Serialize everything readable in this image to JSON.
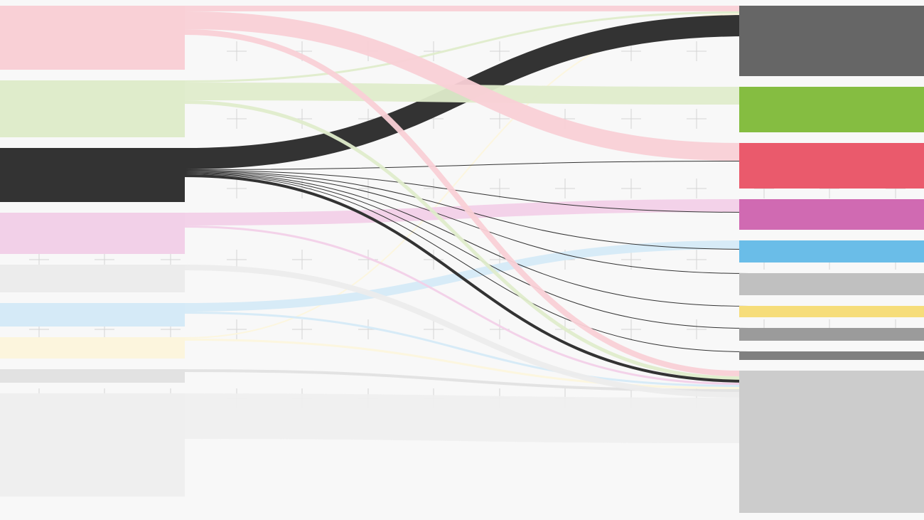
{
  "chart_data": {
    "type": "sankey",
    "sources": [
      {
        "color": "#f9d0d6",
        "value": 90
      },
      {
        "color": "#dfeccb",
        "value": 80
      },
      {
        "color": "#333333",
        "value": 76
      },
      {
        "color": "#f2d0e8",
        "value": 58
      },
      {
        "color": "#ececec",
        "value": 39
      },
      {
        "color": "#d5eaf7",
        "value": 33
      },
      {
        "color": "#fcf5dd",
        "value": 30
      },
      {
        "color": "#e2e2e2",
        "value": 19
      },
      {
        "color": "#efefef",
        "value": 145
      }
    ],
    "targets": [
      {
        "color": "#666666",
        "value": 99
      },
      {
        "color": "#85bd41",
        "value": 64
      },
      {
        "color": "#ea5a6c",
        "value": 64
      },
      {
        "color": "#d06ab2",
        "value": 43
      },
      {
        "color": "#6abde8",
        "value": 31
      },
      {
        "color": "#c0c0c0",
        "value": 31
      },
      {
        "color": "#f6dd7a",
        "value": 16
      },
      {
        "color": "#9b9b9b",
        "value": 18
      },
      {
        "color": "#808080",
        "value": 12
      },
      {
        "color": "#cccccc",
        "value": 200
      }
    ],
    "links": [
      {
        "source": 0,
        "target": 0,
        "value": 8
      },
      {
        "source": 1,
        "target": 0,
        "value": 3
      },
      {
        "source": 6,
        "target": 0,
        "value": 2
      },
      {
        "source": 2,
        "target": 0,
        "value": 30
      },
      {
        "source": 1,
        "target": 1,
        "value": 25
      },
      {
        "source": 0,
        "target": 2,
        "value": 25
      },
      {
        "source": 2,
        "target": 2,
        "value": 1
      },
      {
        "source": 3,
        "target": 3,
        "value": 18
      },
      {
        "source": 2,
        "target": 3,
        "value": 1
      },
      {
        "source": 5,
        "target": 4,
        "value": 12
      },
      {
        "source": 2,
        "target": 4,
        "value": 1
      },
      {
        "source": 2,
        "target": 5,
        "value": 1
      },
      {
        "source": 2,
        "target": 6,
        "value": 1
      },
      {
        "source": 2,
        "target": 7,
        "value": 1
      },
      {
        "source": 2,
        "target": 8,
        "value": 1
      },
      {
        "source": 0,
        "target": 9,
        "value": 8
      },
      {
        "source": 1,
        "target": 9,
        "value": 5
      },
      {
        "source": 2,
        "target": 9,
        "value": 4
      },
      {
        "source": 3,
        "target": 9,
        "value": 3
      },
      {
        "source": 5,
        "target": 9,
        "value": 3
      },
      {
        "source": 6,
        "target": 9,
        "value": 3
      },
      {
        "source": 7,
        "target": 9,
        "value": 4
      },
      {
        "source": 4,
        "target": 9,
        "value": 8
      },
      {
        "source": 8,
        "target": 9,
        "value": 64
      }
    ]
  }
}
